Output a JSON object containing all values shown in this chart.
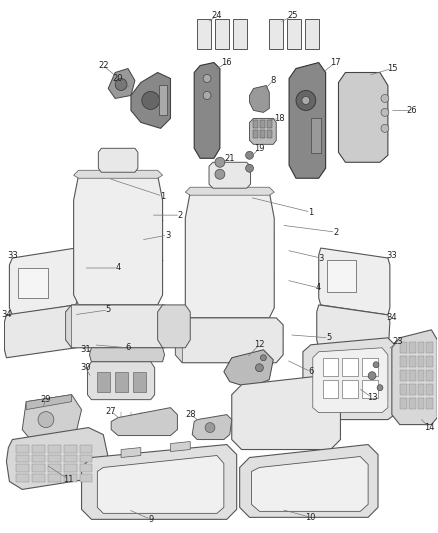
{
  "bg_color": "#ffffff",
  "fig_width": 4.38,
  "fig_height": 5.33,
  "line_color": "#555555",
  "label_color": "#222222",
  "label_fontsize": 6.0,
  "leader_lw": 0.5,
  "part_lw": 0.7,
  "part_fill": "#f0f0f0",
  "part_fill_dark": "#d8d8d8",
  "part_edge": "#555555"
}
